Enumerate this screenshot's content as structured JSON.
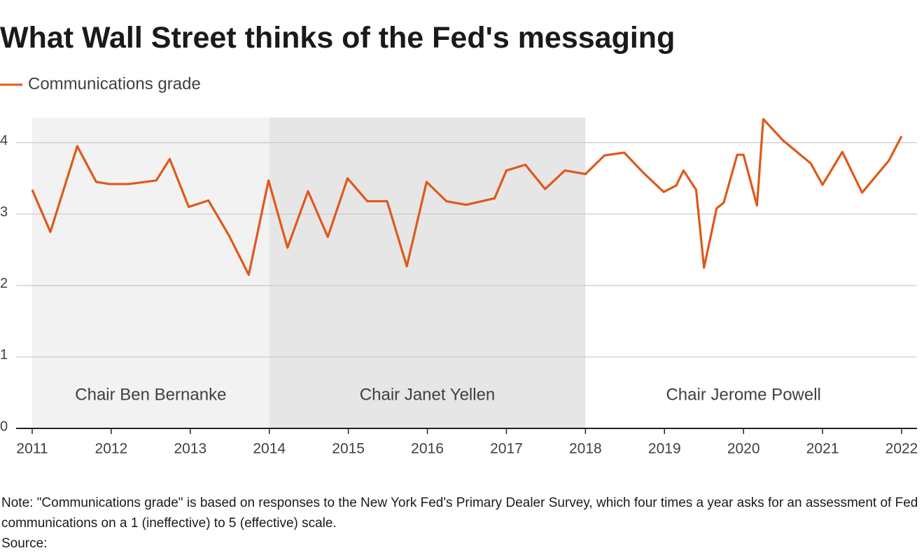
{
  "chart_data": {
    "type": "line",
    "title": "What Wall Street thinks of the Fed's messaging",
    "x": [
      2011.0,
      2011.23,
      2011.57,
      2011.81,
      2011.98,
      2012.22,
      2012.57,
      2012.74,
      2012.98,
      2013.23,
      2013.49,
      2013.74,
      2013.99,
      2014.23,
      2014.49,
      2014.74,
      2014.99,
      2015.24,
      2015.49,
      2015.74,
      2015.99,
      2016.24,
      2016.49,
      2016.85,
      2017.0,
      2017.24,
      2017.49,
      2017.74,
      2018.0,
      2018.24,
      2018.49,
      2018.74,
      2018.99,
      2019.15,
      2019.24,
      2019.4,
      2019.5,
      2019.66,
      2019.75,
      2019.92,
      2020.0,
      2020.17,
      2020.25,
      2020.5,
      2020.85,
      2021.0,
      2021.25,
      2021.5,
      2021.84,
      2022.0
    ],
    "series": [
      {
        "name": "Communications grade",
        "color": "#e0581a",
        "values": [
          3.34,
          2.75,
          3.95,
          3.45,
          3.42,
          3.42,
          3.47,
          3.77,
          3.1,
          3.19,
          2.7,
          2.15,
          3.47,
          2.53,
          3.32,
          2.68,
          3.5,
          3.18,
          3.18,
          2.27,
          3.45,
          3.18,
          3.13,
          3.22,
          3.61,
          3.69,
          3.35,
          3.61,
          3.56,
          3.82,
          3.86,
          3.57,
          3.31,
          3.4,
          3.61,
          3.34,
          2.25,
          3.08,
          3.16,
          3.83,
          3.83,
          3.12,
          4.33,
          4.03,
          3.71,
          3.41,
          3.87,
          3.3,
          3.75,
          4.09
        ]
      }
    ],
    "xlim": [
      2011,
      2022
    ],
    "xticks": [
      2011,
      2012,
      2013,
      2014,
      2015,
      2016,
      2017,
      2018,
      2019,
      2020,
      2021,
      2022
    ],
    "ylim": [
      0,
      4.35
    ],
    "yticks": [
      0,
      1,
      2,
      3,
      4
    ],
    "grid": true,
    "legend": "top-left",
    "shaded_periods": [
      {
        "label": "Chair Ben Bernanke",
        "start": 2011,
        "end": 2014,
        "color": "#f2f2f2"
      },
      {
        "label": "Chair Janet Yellen",
        "start": 2014,
        "end": 2018,
        "color": "#e6e6e6"
      },
      {
        "label": "Chair Jerome Powell",
        "start": 2018,
        "end": 2022
      }
    ],
    "note": "Note: \"Communications grade\" is based on responses to the New York Fed's Primary Dealer Survey, which four times a year asks for an assessment of Fed communications on a 1 (ineffective) to 5 (effective) scale.",
    "source": "Source:"
  }
}
